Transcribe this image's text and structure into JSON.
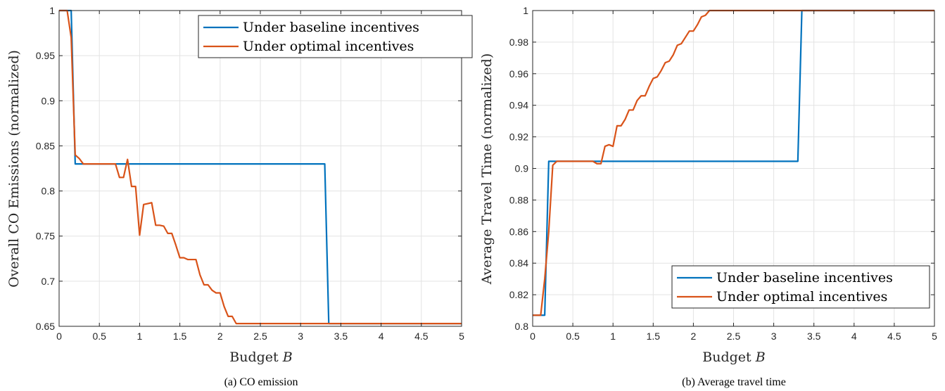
{
  "colors": {
    "baseline": "#0072BD",
    "optimal": "#D95319",
    "grid": "#e3e3e3",
    "axis": "#262626"
  },
  "chart_data": [
    {
      "type": "line",
      "caption": "(a) CO emission",
      "title": "",
      "xlabel": "Budget",
      "xlabel_var": "B",
      "ylabel": "Overall CO Emissions (normalized)",
      "xlim": [
        0,
        5
      ],
      "ylim": [
        0.65,
        1
      ],
      "xticks": [
        "0",
        "0.5",
        "1",
        "1.5",
        "2",
        "2.5",
        "3",
        "3.5",
        "4",
        "4.5",
        "5"
      ],
      "yticks": [
        "0.65",
        "0.7",
        "0.75",
        "0.8",
        "0.85",
        "0.9",
        "0.95",
        "1"
      ],
      "grid": true,
      "legend": "top-right",
      "series": [
        {
          "name": "Under baseline incentives",
          "color": "#0072BD",
          "x": [
            0,
            0.15,
            0.2,
            3.3,
            3.35,
            5
          ],
          "y": [
            1,
            1,
            0.83,
            0.83,
            0.653,
            0.653
          ]
        },
        {
          "name": "Under optimal incentives",
          "color": "#D95319",
          "x": [
            0,
            0.1,
            0.15,
            0.2,
            0.25,
            0.3,
            0.35,
            0.4,
            0.5,
            0.6,
            0.7,
            0.75,
            0.8,
            0.85,
            0.9,
            0.95,
            1.0,
            1.05,
            1.1,
            1.15,
            1.2,
            1.25,
            1.3,
            1.35,
            1.4,
            1.45,
            1.5,
            1.55,
            1.6,
            1.65,
            1.7,
            1.75,
            1.8,
            1.85,
            1.9,
            1.95,
            2.0,
            2.05,
            2.1,
            2.15,
            2.2,
            2.25,
            2.3,
            5
          ],
          "y": [
            1,
            1,
            0.97,
            0.84,
            0.836,
            0.83,
            0.83,
            0.83,
            0.83,
            0.83,
            0.83,
            0.815,
            0.815,
            0.835,
            0.805,
            0.805,
            0.751,
            0.785,
            0.786,
            0.787,
            0.762,
            0.762,
            0.761,
            0.753,
            0.753,
            0.74,
            0.726,
            0.726,
            0.724,
            0.724,
            0.724,
            0.707,
            0.696,
            0.696,
            0.69,
            0.687,
            0.687,
            0.672,
            0.661,
            0.661,
            0.653,
            0.653,
            0.653,
            0.653
          ]
        }
      ]
    },
    {
      "type": "line",
      "caption": "(b) Average travel time",
      "title": "",
      "xlabel": "Budget",
      "xlabel_var": "B",
      "ylabel": "Average Travel Time (normalized)",
      "xlim": [
        0,
        5
      ],
      "ylim": [
        0.8,
        1
      ],
      "xticks": [
        "0",
        "0.5",
        "1",
        "1.5",
        "2",
        "2.5",
        "3",
        "3.5",
        "4",
        "4.5",
        "5"
      ],
      "yticks": [
        "0.8",
        "0.82",
        "0.84",
        "0.86",
        "0.88",
        "0.9",
        "0.92",
        "0.94",
        "0.96",
        "0.98",
        "1"
      ],
      "grid": true,
      "legend": "bottom-right",
      "series": [
        {
          "name": "Under baseline incentives",
          "color": "#0072BD",
          "x": [
            0,
            0.15,
            0.2,
            3.3,
            3.35,
            5
          ],
          "y": [
            0.807,
            0.807,
            0.9045,
            0.9045,
            1,
            1
          ]
        },
        {
          "name": "Under optimal incentives",
          "color": "#D95319",
          "x": [
            0,
            0.1,
            0.15,
            0.2,
            0.25,
            0.3,
            0.35,
            0.4,
            0.5,
            0.6,
            0.7,
            0.75,
            0.8,
            0.85,
            0.9,
            0.95,
            1.0,
            1.05,
            1.1,
            1.15,
            1.2,
            1.25,
            1.3,
            1.35,
            1.4,
            1.45,
            1.5,
            1.55,
            1.6,
            1.65,
            1.7,
            1.75,
            1.8,
            1.85,
            1.9,
            1.95,
            2.0,
            2.05,
            2.1,
            2.15,
            2.2,
            2.25,
            2.3,
            5
          ],
          "y": [
            0.807,
            0.807,
            0.83,
            0.86,
            0.902,
            0.9045,
            0.9045,
            0.9045,
            0.9045,
            0.9045,
            0.9045,
            0.9045,
            0.903,
            0.903,
            0.914,
            0.915,
            0.914,
            0.927,
            0.927,
            0.931,
            0.937,
            0.937,
            0.943,
            0.946,
            0.946,
            0.952,
            0.957,
            0.958,
            0.962,
            0.967,
            0.968,
            0.972,
            0.978,
            0.979,
            0.983,
            0.987,
            0.987,
            0.991,
            0.996,
            0.997,
            1,
            1,
            1,
            1
          ]
        }
      ]
    }
  ]
}
